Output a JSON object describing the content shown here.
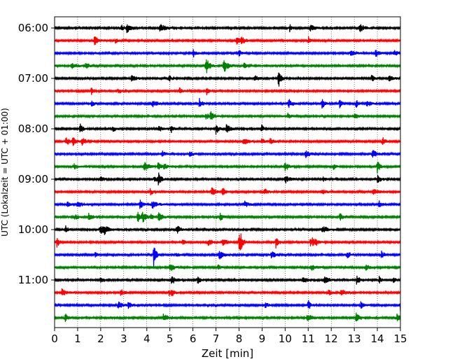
{
  "chart_data": {
    "type": "line",
    "title": "",
    "xlabel": "Zeit  [min]",
    "ylabel": "UTC (Lokalzeit = UTC + 01:00)",
    "xlim": [
      0,
      15
    ],
    "x_ticks": [
      0,
      1,
      2,
      3,
      4,
      5,
      6,
      7,
      8,
      9,
      10,
      11,
      12,
      13,
      14,
      15
    ],
    "grid": "vertical-dotted",
    "trace_interval_min": 15,
    "start_time": "06:00",
    "y_tick_labels": [
      "06:00",
      "07:00",
      "08:00",
      "09:00",
      "10:00",
      "11:00"
    ],
    "trace_color_cycle": [
      "#000000",
      "#ff0000",
      "#0000ff",
      "#008000"
    ],
    "trace_count": 24,
    "events": [
      {
        "trace": 4,
        "minute": 9.7,
        "amplitude": 1.0
      },
      {
        "trace": 6,
        "minute": 11.6,
        "amplitude": 0.5
      },
      {
        "trace": 8,
        "minute": 1.1,
        "amplitude": 0.5
      },
      {
        "trace": 8,
        "minute": 7.0,
        "amplitude": 0.5
      },
      {
        "trace": 11,
        "minute": 14.0,
        "amplitude": 0.6
      },
      {
        "trace": 12,
        "minute": 4.5,
        "amplitude": 0.6
      },
      {
        "trace": 15,
        "minute": 3.6,
        "amplitude": 0.6
      },
      {
        "trace": 17,
        "minute": 0.1,
        "amplitude": 0.55
      },
      {
        "trace": 17,
        "minute": 8.0,
        "amplitude": 1.0
      },
      {
        "trace": 17,
        "minute": 9.6,
        "amplitude": 0.6
      },
      {
        "trace": 18,
        "minute": 4.3,
        "amplitude": 1.0
      },
      {
        "trace": 20,
        "minute": 6.2,
        "amplitude": 0.45
      },
      {
        "trace": 22,
        "minute": 11.0,
        "amplitude": 0.5
      },
      {
        "trace": 22,
        "minute": 15.0,
        "amplitude": 0.5
      }
    ]
  }
}
